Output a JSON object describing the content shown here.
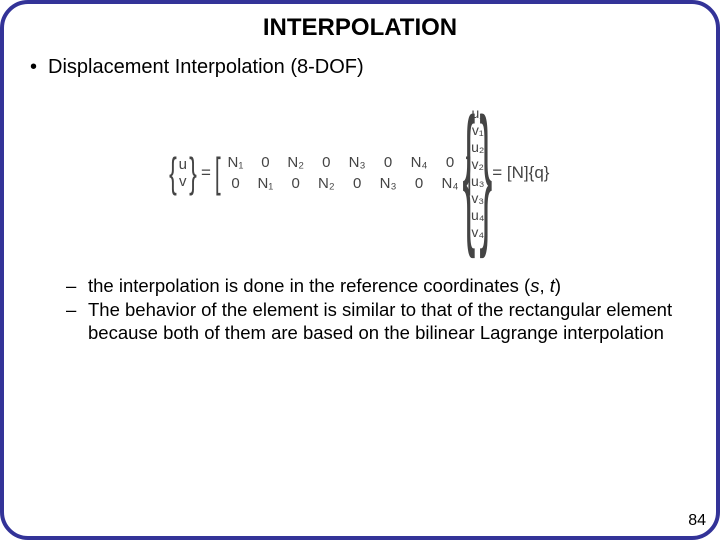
{
  "title": "INTERPOLATION",
  "main_bullet": "Displacement Interpolation (8-DOF)",
  "equation": {
    "lhs_vec": [
      "u",
      "v"
    ],
    "matrix": [
      [
        "N₁",
        "0",
        "N₂",
        "0",
        "N₃",
        "0",
        "N₄",
        "0"
      ],
      [
        "0",
        "N₁",
        "0",
        "N₂",
        "0",
        "N₃",
        "0",
        "N₄"
      ]
    ],
    "q_vec": [
      "u₁",
      "v₁",
      "u₂",
      "v₂",
      "u₃",
      "v₃",
      "u₄",
      "v₄"
    ],
    "rhs_text": "= [N]{q}"
  },
  "sub_bullets": [
    {
      "pre": "the interpolation is done in the reference coordinates (",
      "var1": "s",
      "mid": ", ",
      "var2": "t",
      "post": ")"
    },
    {
      "full": "The behavior of the element is similar to that of the rectangular element because both of them are based on the bilinear Lagrange interpolation"
    }
  ],
  "page_number": "84"
}
